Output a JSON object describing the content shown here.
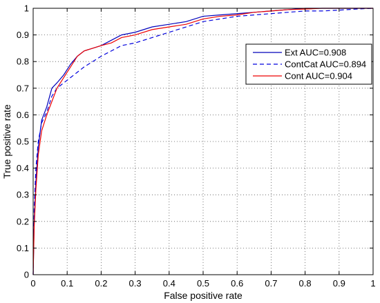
{
  "chart_data": {
    "type": "line",
    "title": "",
    "xlabel": "False positive rate",
    "ylabel": "True positive rate",
    "xlim": [
      0,
      1
    ],
    "ylim": [
      0,
      1
    ],
    "xticks": [
      "0",
      "0.1",
      "0.2",
      "0.3",
      "0.4",
      "0.5",
      "0.6",
      "0.7",
      "0.8",
      "0.9",
      "1"
    ],
    "yticks": [
      "0",
      "0.1",
      "0.2",
      "0.3",
      "0.4",
      "0.5",
      "0.6",
      "0.7",
      "0.8",
      "0.9",
      "1"
    ],
    "grid": true,
    "grid_style": "dotted",
    "legend_position": "top-right",
    "series": [
      {
        "name": "Ext AUC=0.908",
        "color": "#0000bb",
        "dash": "solid",
        "x": [
          0,
          0.003,
          0.008,
          0.015,
          0.025,
          0.04,
          0.055,
          0.07,
          0.09,
          0.11,
          0.13,
          0.15,
          0.175,
          0.2,
          0.23,
          0.26,
          0.3,
          0.35,
          0.4,
          0.45,
          0.5,
          0.55,
          0.6,
          0.65,
          0.7,
          0.75,
          0.8,
          0.85,
          0.9,
          0.95,
          1.0
        ],
        "y": [
          0,
          0.2,
          0.35,
          0.48,
          0.58,
          0.63,
          0.7,
          0.72,
          0.75,
          0.79,
          0.82,
          0.84,
          0.85,
          0.86,
          0.88,
          0.9,
          0.91,
          0.93,
          0.94,
          0.95,
          0.97,
          0.975,
          0.98,
          0.985,
          0.99,
          0.995,
          1.0,
          1.0,
          1.0,
          1.0,
          1.0
        ]
      },
      {
        "name": "ContCat AUC=0.894",
        "color": "#0000dd",
        "dash": "dashed",
        "x": [
          0,
          0.003,
          0.008,
          0.015,
          0.025,
          0.04,
          0.055,
          0.07,
          0.09,
          0.11,
          0.13,
          0.15,
          0.175,
          0.2,
          0.23,
          0.26,
          0.3,
          0.35,
          0.4,
          0.45,
          0.5,
          0.55,
          0.6,
          0.65,
          0.7,
          0.75,
          0.8,
          0.85,
          0.9,
          0.95,
          1.0
        ],
        "y": [
          0,
          0.25,
          0.4,
          0.5,
          0.57,
          0.61,
          0.67,
          0.7,
          0.72,
          0.74,
          0.76,
          0.78,
          0.8,
          0.82,
          0.84,
          0.86,
          0.87,
          0.89,
          0.91,
          0.93,
          0.95,
          0.96,
          0.97,
          0.975,
          0.98,
          0.985,
          0.99,
          0.99,
          0.993,
          0.997,
          1.0
        ]
      },
      {
        "name": "Cont AUC=0.904",
        "color": "#ee0000",
        "dash": "solid",
        "x": [
          0,
          0.003,
          0.008,
          0.015,
          0.025,
          0.04,
          0.055,
          0.07,
          0.09,
          0.11,
          0.13,
          0.15,
          0.175,
          0.2,
          0.23,
          0.26,
          0.3,
          0.35,
          0.4,
          0.45,
          0.5,
          0.55,
          0.6,
          0.65,
          0.7,
          0.75,
          0.8,
          0.85,
          0.9,
          0.95,
          1.0
        ],
        "y": [
          0,
          0.18,
          0.32,
          0.45,
          0.54,
          0.6,
          0.65,
          0.7,
          0.74,
          0.78,
          0.82,
          0.84,
          0.85,
          0.86,
          0.87,
          0.89,
          0.9,
          0.92,
          0.93,
          0.94,
          0.96,
          0.97,
          0.975,
          0.985,
          0.99,
          0.995,
          0.997,
          1.0,
          1.0,
          1.0,
          1.0
        ]
      }
    ]
  }
}
